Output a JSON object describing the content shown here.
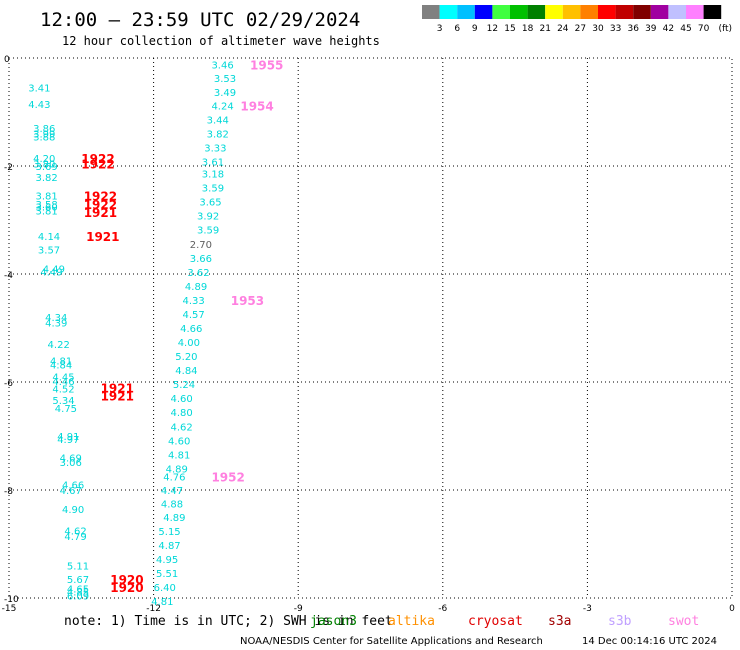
{
  "header": {
    "title": "12:00 – 23:59 UTC 02/29/2024",
    "subtitle": "12 hour collection of altimeter wave heights"
  },
  "colorbar": {
    "colors": [
      "#808080",
      "#00ffff",
      "#00c0ff",
      "#0000ff",
      "#40ff40",
      "#00c000",
      "#008000",
      "#ffff00",
      "#ffc000",
      "#ff8000",
      "#ff0000",
      "#c00000",
      "#800000",
      "#a000a0",
      "#c0c0ff",
      "#ff80ff",
      "#000000"
    ],
    "labels": [
      "3",
      "6",
      "9",
      "12",
      "15",
      "18",
      "21",
      "24",
      "27",
      "30",
      "33",
      "36",
      "39",
      "42",
      "45",
      "70"
    ],
    "unit": "(ft)"
  },
  "chart_data": {
    "type": "scatter",
    "title": "12:00 – 23:59 UTC 02/29/2024",
    "subtitle": "12 hour collection of altimeter wave heights",
    "xlim": [
      -15,
      0
    ],
    "ylim": [
      -10,
      0
    ],
    "x_ticks": [
      "-15",
      "-12",
      "-9",
      "-6",
      "-3",
      "0"
    ],
    "y_ticks": [
      "0",
      "-2",
      "-4",
      "-6",
      "-8",
      "-10"
    ],
    "grid": true,
    "series": [
      {
        "name": "jason3",
        "color": "#00d8d8",
        "points": [
          {
            "x": -14.6,
            "y": -0.55,
            "v": "3.41"
          },
          {
            "x": -14.6,
            "y": -0.85,
            "v": "4.43"
          },
          {
            "x": -14.5,
            "y": -1.3,
            "v": "3.86"
          },
          {
            "x": -14.5,
            "y": -1.4,
            "v": "3.99"
          },
          {
            "x": -14.5,
            "y": -1.45,
            "v": "3.88"
          },
          {
            "x": -14.5,
            "y": -1.85,
            "v": "4.20"
          },
          {
            "x": -14.5,
            "y": -1.95,
            "v": "3.80"
          },
          {
            "x": -14.45,
            "y": -2.0,
            "v": "3.69"
          },
          {
            "x": -14.45,
            "y": -2.2,
            "v": "3.82"
          },
          {
            "x": -14.45,
            "y": -2.55,
            "v": "3.81"
          },
          {
            "x": -14.45,
            "y": -2.7,
            "v": "3.58"
          },
          {
            "x": -14.45,
            "y": -2.75,
            "v": "3.60"
          },
          {
            "x": -14.45,
            "y": -2.82,
            "v": "3.81"
          },
          {
            "x": -14.4,
            "y": -3.3,
            "v": "4.14"
          },
          {
            "x": -14.4,
            "y": -3.55,
            "v": "3.57"
          },
          {
            "x": -14.3,
            "y": -3.9,
            "v": "4.49"
          },
          {
            "x": -14.35,
            "y": -3.95,
            "v": "4.49"
          },
          {
            "x": -14.25,
            "y": -4.8,
            "v": "4.34"
          },
          {
            "x": -14.25,
            "y": -4.9,
            "v": "4.39"
          },
          {
            "x": -14.2,
            "y": -5.3,
            "v": "4.22"
          },
          {
            "x": -14.15,
            "y": -5.6,
            "v": "4.81"
          },
          {
            "x": -14.15,
            "y": -5.68,
            "v": "4.84"
          },
          {
            "x": -14.1,
            "y": -5.9,
            "v": "4.45"
          },
          {
            "x": -14.1,
            "y": -5.98,
            "v": "4.46"
          },
          {
            "x": -14.1,
            "y": -6.12,
            "v": "4.52"
          },
          {
            "x": -14.1,
            "y": -6.33,
            "v": "5.34"
          },
          {
            "x": -14.05,
            "y": -6.48,
            "v": "4.75"
          },
          {
            "x": -14.0,
            "y": -7.0,
            "v": "4.91"
          },
          {
            "x": -14.0,
            "y": -7.06,
            "v": "4.97"
          },
          {
            "x": -13.95,
            "y": -7.4,
            "v": "4.69"
          },
          {
            "x": -13.95,
            "y": -7.48,
            "v": "3.06"
          },
          {
            "x": -13.9,
            "y": -7.9,
            "v": "4.66"
          },
          {
            "x": -13.95,
            "y": -8.0,
            "v": "4.67"
          },
          {
            "x": -13.9,
            "y": -8.35,
            "v": "4.90"
          },
          {
            "x": -13.85,
            "y": -8.75,
            "v": "4.62"
          },
          {
            "x": -13.85,
            "y": -8.85,
            "v": "4.79"
          },
          {
            "x": -13.8,
            "y": -9.4,
            "v": "5.11"
          },
          {
            "x": -13.8,
            "y": -9.65,
            "v": "5.67"
          },
          {
            "x": -13.8,
            "y": -9.82,
            "v": "4.65"
          },
          {
            "x": -13.8,
            "y": -9.88,
            "v": "4.85"
          },
          {
            "x": -13.8,
            "y": -9.95,
            "v": "6.09"
          },
          {
            "x": -10.8,
            "y": -0.12,
            "v": "3.46"
          },
          {
            "x": -10.75,
            "y": -0.37,
            "v": "3.53"
          },
          {
            "x": -10.75,
            "y": -0.63,
            "v": "3.49"
          },
          {
            "x": -10.8,
            "y": -0.88,
            "v": "4.24"
          },
          {
            "x": -10.9,
            "y": -1.14,
            "v": "3.44"
          },
          {
            "x": -10.9,
            "y": -1.4,
            "v": "3.82"
          },
          {
            "x": -10.95,
            "y": -1.66,
            "v": "3.33"
          },
          {
            "x": -11.0,
            "y": -1.92,
            "v": "3.61"
          },
          {
            "x": -11.0,
            "y": -2.14,
            "v": "3.18"
          },
          {
            "x": -11.0,
            "y": -2.4,
            "v": "3.59"
          },
          {
            "x": -11.05,
            "y": -2.66,
            "v": "3.65"
          },
          {
            "x": -11.1,
            "y": -2.92,
            "v": "3.92"
          },
          {
            "x": -11.1,
            "y": -3.18,
            "v": "3.59"
          },
          {
            "x": -11.25,
            "y": -3.44,
            "v": "2.70"
          },
          {
            "x": -11.25,
            "y": -3.7,
            "v": "3.66"
          },
          {
            "x": -11.3,
            "y": -3.96,
            "v": "3.62"
          },
          {
            "x": -11.35,
            "y": -4.22,
            "v": "4.89"
          },
          {
            "x": -11.4,
            "y": -4.48,
            "v": "4.33"
          },
          {
            "x": -11.4,
            "y": -4.74,
            "v": "4.57"
          },
          {
            "x": -11.45,
            "y": -5.0,
            "v": "4.66"
          },
          {
            "x": -11.5,
            "y": -5.26,
            "v": "4.00"
          },
          {
            "x": -11.55,
            "y": -5.52,
            "v": "5.20"
          },
          {
            "x": -11.55,
            "y": -5.78,
            "v": "4.84"
          },
          {
            "x": -11.6,
            "y": -6.04,
            "v": "5.24"
          },
          {
            "x": -11.65,
            "y": -6.3,
            "v": "4.60"
          },
          {
            "x": -11.65,
            "y": -6.56,
            "v": "4.80"
          },
          {
            "x": -11.65,
            "y": -6.82,
            "v": "4.62"
          },
          {
            "x": -11.7,
            "y": -7.08,
            "v": "4.60"
          },
          {
            "x": -11.7,
            "y": -7.34,
            "v": "4.81"
          },
          {
            "x": -11.75,
            "y": -7.6,
            "v": "4.89"
          },
          {
            "x": -11.8,
            "y": -7.75,
            "v": "4.76"
          },
          {
            "x": -11.85,
            "y": -8.0,
            "v": "4.47"
          },
          {
            "x": -11.85,
            "y": -8.25,
            "v": "4.88"
          },
          {
            "x": -11.8,
            "y": -8.5,
            "v": "4.89"
          },
          {
            "x": -11.9,
            "y": -8.76,
            "v": "5.15"
          },
          {
            "x": -11.9,
            "y": -9.02,
            "v": "4.87"
          },
          {
            "x": -11.95,
            "y": -9.28,
            "v": "4.95"
          },
          {
            "x": -11.95,
            "y": -9.54,
            "v": "5.51"
          },
          {
            "x": -12.0,
            "y": -9.8,
            "v": "6.40"
          },
          {
            "x": -12.05,
            "y": -10.06,
            "v": "4.81"
          }
        ]
      }
    ],
    "pass_labels": [
      {
        "x": -13.5,
        "y": -1.85,
        "text": "1922",
        "color": "#ff0000"
      },
      {
        "x": -13.5,
        "y": -1.95,
        "text": "1922",
        "color": "#ff0000"
      },
      {
        "x": -13.45,
        "y": -2.55,
        "text": "1922",
        "color": "#ff0000"
      },
      {
        "x": -13.45,
        "y": -2.7,
        "text": "1922",
        "color": "#ff0000"
      },
      {
        "x": -13.45,
        "y": -2.85,
        "text": "1921",
        "color": "#ff0000"
      },
      {
        "x": -13.4,
        "y": -3.3,
        "text": "1921",
        "color": "#ff0000"
      },
      {
        "x": -13.1,
        "y": -6.1,
        "text": "1921",
        "color": "#ff0000"
      },
      {
        "x": -13.1,
        "y": -6.25,
        "text": "1921",
        "color": "#ff0000"
      },
      {
        "x": -12.9,
        "y": -9.65,
        "text": "1920",
        "color": "#ff0000"
      },
      {
        "x": -12.9,
        "y": -9.8,
        "text": "1920",
        "color": "#ff0000"
      },
      {
        "x": -10.0,
        "y": -0.12,
        "text": "1955",
        "color": "#ff80e0"
      },
      {
        "x": -10.2,
        "y": -0.88,
        "text": "1954",
        "color": "#ff80e0"
      },
      {
        "x": -10.4,
        "y": -4.48,
        "text": "1953",
        "color": "#ff80e0"
      },
      {
        "x": -10.8,
        "y": -7.75,
        "text": "1952",
        "color": "#ff80e0"
      }
    ]
  },
  "footer": {
    "note": "note: 1) Time is in UTC; 2) SWH is in feet",
    "satellites": [
      {
        "name": "jason3",
        "color": "#008000"
      },
      {
        "name": "altika",
        "color": "#ff9000"
      },
      {
        "name": "cryosat",
        "color": "#e00000"
      },
      {
        "name": "s3a",
        "color": "#a00000"
      },
      {
        "name": "s3b",
        "color": "#c0a0ff"
      },
      {
        "name": "swot",
        "color": "#ff80e0"
      }
    ],
    "credit": "NOAA/NESDIS Center for Satellite Applications and Research",
    "timestamp": "14 Dec 00:14:16 UTC 2024"
  }
}
